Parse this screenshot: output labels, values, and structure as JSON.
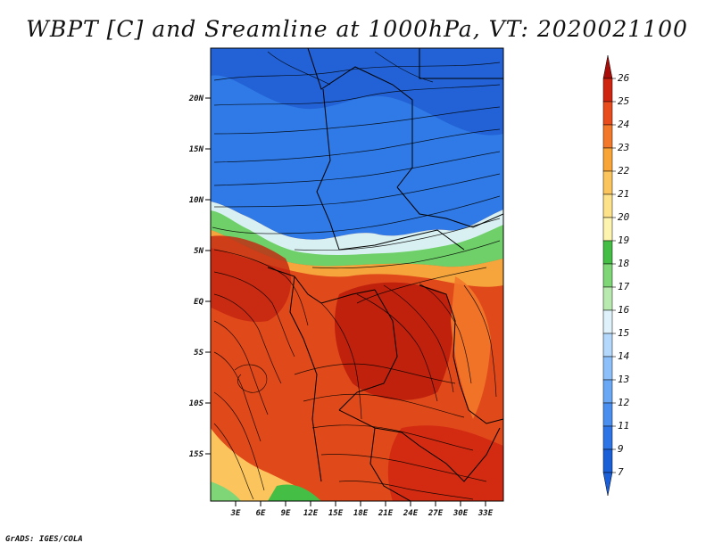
{
  "title": "WBPT [C] and Sreamline at 1000hPa, VT: 2020021100",
  "footer": "GrADS: IGES/COLA",
  "map": {
    "variable": "Wet-bulb potential temperature (C) with 1000hPa streamlines",
    "lon_ticks": [
      "3E",
      "6E",
      "9E",
      "12E",
      "15E",
      "18E",
      "21E",
      "24E",
      "27E",
      "30E",
      "33E"
    ],
    "lat_ticks": [
      "20N",
      "15N",
      "10N",
      "5N",
      "EQ",
      "5S",
      "10S",
      "15S"
    ]
  },
  "colorbar": {
    "labels": [
      "7",
      "9",
      "11",
      "12",
      "13",
      "14",
      "15",
      "16",
      "17",
      "18",
      "19",
      "20",
      "21",
      "22",
      "23",
      "24",
      "25",
      "26"
    ],
    "colors": [
      "#1a5fd8",
      "#2d74e6",
      "#4a8ff0",
      "#6aa8f6",
      "#8dc0fa",
      "#b4d8fc",
      "#dff2fb",
      "#b8eab0",
      "#7fd676",
      "#44be44",
      "#fdf4b0",
      "#fde28a",
      "#fcc45c",
      "#f9a437",
      "#f3782a",
      "#e84b1c",
      "#cf2410",
      "#a80c08"
    ]
  }
}
